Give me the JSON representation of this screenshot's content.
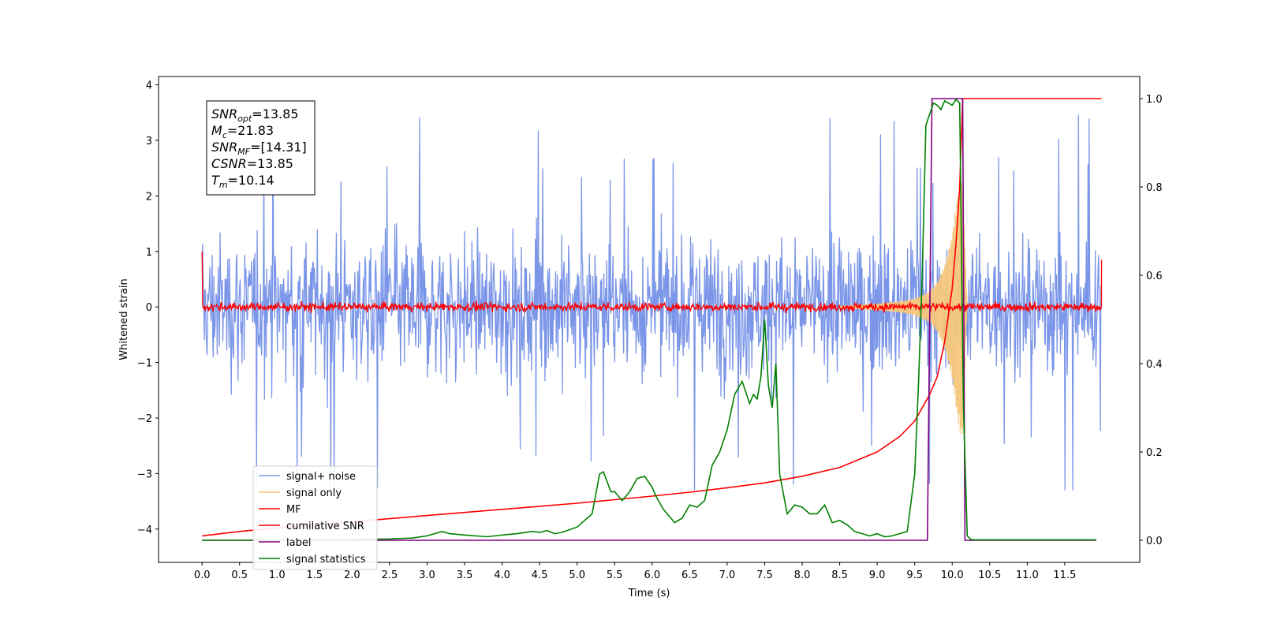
{
  "chart_data": {
    "type": "line",
    "xlabel": "Time (s)",
    "ylabel": "Whitened strain",
    "xlim": [
      -0.58,
      12.5
    ],
    "ylim_left": [
      -4.6,
      4.15
    ],
    "ylim_right": [
      -0.05,
      1.05
    ],
    "x_ticks": [
      "0.0",
      "0.5",
      "1.0",
      "1.5",
      "2.0",
      "2.5",
      "3.0",
      "3.5",
      "4.0",
      "4.5",
      "5.0",
      "5.5",
      "6.0",
      "6.5",
      "7.0",
      "7.5",
      "8.0",
      "8.5",
      "9.0",
      "9.5",
      "10.0",
      "10.5",
      "11.0",
      "11.5"
    ],
    "y_ticks_left": [
      "4",
      "3",
      "2",
      "1",
      "0",
      "−1",
      "−2",
      "−3",
      "−4"
    ],
    "y_ticks_right": [
      "1.0",
      "0.8",
      "0.6",
      "0.4",
      "0.2",
      "0.0"
    ],
    "annotation": {
      "lines": [
        {
          "base": "SNR",
          "sub": "opt",
          "value": "=13.85"
        },
        {
          "base": "M",
          "sub": "c",
          "value": "=21.83"
        },
        {
          "base": "SNR",
          "sub": "MF",
          "value": "=[14.31]"
        },
        {
          "base": "CSNR",
          "sub": "",
          "value": "=13.85"
        },
        {
          "base": "T",
          "sub": "m",
          "value": "=10.14"
        }
      ]
    },
    "legend": {
      "placement": "lower-left",
      "entries": [
        {
          "label": "signal+ noise",
          "color": "#7b96e8"
        },
        {
          "label": "signal only",
          "color": "#f5c77b"
        },
        {
          "label": "MF",
          "color": "#ff0000"
        },
        {
          "label": "cumilative SNR",
          "color": "#ff0000"
        },
        {
          "label": "label",
          "color": "#800080"
        },
        {
          "label": "signal statistics",
          "color": "#008000"
        }
      ]
    },
    "series": [
      {
        "name": "signal+ noise",
        "axis": "left",
        "color": "#7b96e8",
        "noise_envelope": {
          "x": [
            0,
            11.99
          ],
          "typical_amplitude": 1.0,
          "peak_max": 3.75,
          "peak_min": -3.3
        }
      },
      {
        "name": "signal only",
        "axis": "left",
        "color": "#f5c77b",
        "chirp_envelope": {
          "x": [
            8.5,
            9.0,
            9.3,
            9.5,
            9.7,
            9.8,
            9.9,
            10.0,
            10.05,
            10.1,
            10.14,
            10.2
          ],
          "amplitude": [
            0.02,
            0.06,
            0.1,
            0.15,
            0.28,
            0.45,
            0.75,
            1.3,
            1.8,
            2.3,
            2.3,
            0.0
          ]
        }
      },
      {
        "name": "MF",
        "axis": "left",
        "color": "#ff0000",
        "noise_band": {
          "x": [
            0,
            11.99
          ],
          "amplitude": 0.1,
          "start_value": 1.0,
          "end_value": 0.85
        }
      },
      {
        "name": "cumilative SNR",
        "axis": "right",
        "color": "#ff0000",
        "x": [
          0.0,
          0.5,
          1.0,
          1.5,
          2.0,
          2.5,
          3.0,
          3.5,
          4.0,
          4.5,
          5.0,
          5.5,
          6.0,
          6.5,
          7.0,
          7.5,
          8.0,
          8.5,
          9.0,
          9.3,
          9.5,
          9.7,
          9.8,
          9.9,
          10.0,
          10.05,
          10.1,
          10.14,
          10.15,
          11.99
        ],
        "y": [
          0.01,
          0.02,
          0.028,
          0.035,
          0.042,
          0.049,
          0.056,
          0.063,
          0.07,
          0.077,
          0.084,
          0.092,
          0.1,
          0.109,
          0.119,
          0.13,
          0.145,
          0.165,
          0.2,
          0.235,
          0.27,
          0.33,
          0.37,
          0.45,
          0.57,
          0.67,
          0.8,
          1.0,
          1.0,
          1.0
        ]
      },
      {
        "name": "label",
        "axis": "right",
        "color": "#800080",
        "x": [
          0.0,
          9.67,
          9.73,
          10.14,
          10.17,
          11.92
        ],
        "y": [
          0.0,
          0.0,
          1.0,
          1.0,
          0.0,
          0.0
        ]
      },
      {
        "name": "signal statistics",
        "axis": "right",
        "color": "#008000",
        "x": [
          0.0,
          1.0,
          2.0,
          2.5,
          2.8,
          3.0,
          3.2,
          3.3,
          3.5,
          3.8,
          4.0,
          4.2,
          4.4,
          4.5,
          4.6,
          4.7,
          4.8,
          5.0,
          5.1,
          5.2,
          5.3,
          5.35,
          5.45,
          5.5,
          5.6,
          5.7,
          5.8,
          5.9,
          6.0,
          6.05,
          6.15,
          6.3,
          6.4,
          6.5,
          6.6,
          6.7,
          6.8,
          6.9,
          7.0,
          7.1,
          7.2,
          7.3,
          7.35,
          7.4,
          7.45,
          7.5,
          7.55,
          7.6,
          7.65,
          7.7,
          7.8,
          7.9,
          8.0,
          8.1,
          8.2,
          8.3,
          8.4,
          8.5,
          8.6,
          8.7,
          8.8,
          8.9,
          9.0,
          9.1,
          9.2,
          9.3,
          9.4,
          9.5,
          9.55,
          9.6,
          9.65,
          9.75,
          9.8,
          9.85,
          9.9,
          10.0,
          10.05,
          10.1,
          10.15,
          10.2,
          10.25,
          10.3,
          10.5,
          11.0,
          11.5,
          11.92
        ],
        "y": [
          0.0,
          0.0,
          0.002,
          0.003,
          0.005,
          0.01,
          0.02,
          0.015,
          0.012,
          0.008,
          0.012,
          0.015,
          0.02,
          0.018,
          0.022,
          0.015,
          0.018,
          0.03,
          0.045,
          0.06,
          0.15,
          0.155,
          0.11,
          0.11,
          0.09,
          0.11,
          0.14,
          0.145,
          0.12,
          0.1,
          0.07,
          0.04,
          0.05,
          0.08,
          0.075,
          0.09,
          0.17,
          0.2,
          0.25,
          0.33,
          0.36,
          0.31,
          0.33,
          0.32,
          0.37,
          0.5,
          0.35,
          0.3,
          0.4,
          0.15,
          0.06,
          0.08,
          0.075,
          0.06,
          0.06,
          0.08,
          0.04,
          0.045,
          0.035,
          0.02,
          0.015,
          0.01,
          0.015,
          0.008,
          0.01,
          0.015,
          0.02,
          0.15,
          0.35,
          0.6,
          0.94,
          0.99,
          0.985,
          0.975,
          0.995,
          0.985,
          0.998,
          0.99,
          0.3,
          0.01,
          0.002,
          0.001,
          0.001,
          0.001,
          0.001,
          0.001
        ]
      }
    ]
  }
}
